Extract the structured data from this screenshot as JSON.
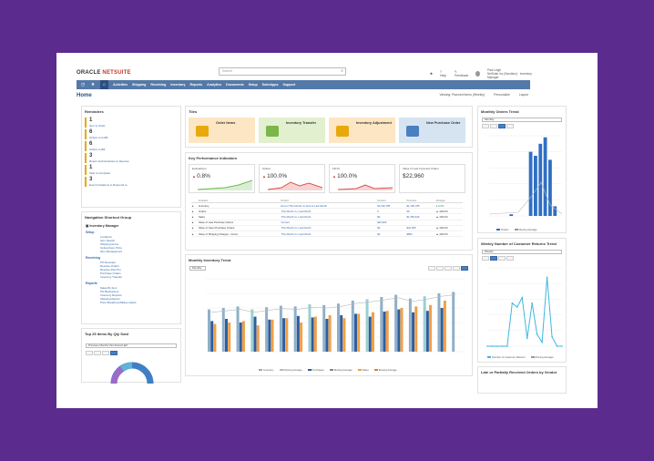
{
  "app": {
    "logo_a": "ORACLE",
    "logo_b": " NETSUITE",
    "search_placeholder": "Search"
  },
  "topbar": {
    "help": "Help",
    "feedback": "Feedback",
    "user_name": "Paul Leigh",
    "user_role": "NetSuite Inc (Sandbox) · Inventory Manager"
  },
  "nav": {
    "items": [
      "Activities",
      "Shipping",
      "Receiving",
      "Inventory",
      "Reports",
      "Analytics",
      "Documents",
      "Setup",
      "SuiteApps",
      "Support"
    ]
  },
  "page": {
    "title": "Home",
    "viewing": "Viewing: Planned Items (Weekly)",
    "personalize": "Personalize",
    "layout": "Layout"
  },
  "reminders": {
    "title": "Reminders",
    "items": [
      {
        "count": "1",
        "label": "Item to Order"
      },
      {
        "count": "6",
        "label": "Orders to Fulfill"
      },
      {
        "count": "6",
        "label": "Orders to Bill"
      },
      {
        "count": "3",
        "label": "Return Authorizations to Receive"
      },
      {
        "count": "1",
        "label": "Task to Complete"
      },
      {
        "count": "3",
        "label": "Event Invitations to Respond to"
      }
    ]
  },
  "nsg": {
    "title": "Navigation Shortcut Group",
    "group": "Inventory Manager",
    "sections": [
      {
        "name": "Setup",
        "links": [
          "Locations",
          "Item Search",
          "Shipping Items",
          "Upload Item Price",
          "Item Management"
        ]
      },
      {
        "name": "Receiving",
        "links": [
          "PO Receipts",
          "Receive Orders",
          "Receive RAs Pro",
          "Purchase Orders",
          "Inventory Transfer"
        ]
      },
      {
        "name": "Reports",
        "links": [
          "Sales By Item",
          "PO Backorders",
          "Inventory Reports",
          "Shipping Report",
          "Price Breaking Mailing Labels"
        ]
      }
    ]
  },
  "top25": {
    "title": "Top 25 Items By Qty Sold",
    "select": "Previous Months this Fiscal Half"
  },
  "tiles": {
    "title": "Tiles",
    "items": [
      {
        "label": "Order Items",
        "bg": "#fde6c4"
      },
      {
        "label": "Inventory Transfer",
        "bg": "#e3f0cf"
      },
      {
        "label": "Inventory Adjustment",
        "bg": "#fde6c4"
      },
      {
        "label": "New Purchase Order",
        "bg": "#d6e4f2"
      }
    ]
  },
  "kpi": {
    "title": "Key Performance Indicators",
    "cards": [
      {
        "label": "Evaluations",
        "value": "0.8%"
      },
      {
        "label": "Orders",
        "value": "100.0%"
      },
      {
        "label": "Fill Rt",
        "value": "100.0%"
      },
      {
        "label": "Value of Last Forecast Orders",
        "value": "$22,960"
      }
    ],
    "headers": [
      "Indicator",
      "Period",
      "Current",
      "Previous",
      "Change"
    ],
    "rows": [
      {
        "ind": "Inventory",
        "period": "End of This Month vs. End of Last Month",
        "cur": "$1,196,785",
        "prev": "$1,196,785",
        "chg": "0.0%"
      },
      {
        "ind": "Orders",
        "period": "This Month vs. Last Month",
        "cur": "6",
        "prev": "96",
        "chg": "100.0%"
      },
      {
        "ind": "Sales",
        "period": "This Month vs. Last Month",
        "cur": "$0",
        "prev": "$1,353,626",
        "chg": "100.0%"
      },
      {
        "ind": "Value of Late Purchase Orders",
        "period": "Current",
        "cur": "$22,960",
        "prev": "",
        "chg": ""
      },
      {
        "ind": "Value of Open Purchase Orders",
        "period": "This Month vs. Last Month",
        "cur": "$0",
        "prev": "$42,365",
        "chg": "100.0%"
      },
      {
        "ind": "Value of Shipping Charges - Gross",
        "period": "This Month vs. Last Month",
        "cur": "$0",
        "prev": "$852",
        "chg": "100.0%"
      }
    ]
  },
  "mit": {
    "title": "Monthly Inventory Trend",
    "select": "Monthly",
    "legend": [
      "Inventory",
      "Moving Average",
      "Purchases",
      "Moving Average",
      "Sales",
      "Moving Average"
    ],
    "colors": {
      "inventory": "#8fb0c9",
      "purchases": "#2f5d9e",
      "sales": "#f0a048",
      "teal": "#9ccfcf"
    }
  },
  "mot": {
    "title": "Monthly Orders Trend",
    "select": "Monthly",
    "legend": [
      "Orders",
      "Moving Average"
    ]
  },
  "wcr": {
    "title": "Weekly Number of Customer Returns Trend",
    "select": "Weekly",
    "legend": [
      "Number of Customer Returns",
      "Moving Average"
    ]
  },
  "lpr": {
    "title": "Late or Partially Received Orders by Vendor"
  },
  "chart_data": [
    {
      "type": "bar",
      "name": "Monthly Inventory Trend",
      "series": [
        {
          "name": "Inventory",
          "values": [
            58,
            60,
            62,
            58,
            61,
            63,
            62,
            65,
            64,
            66,
            70,
            72,
            75,
            78,
            73,
            76,
            80,
            82
          ]
        },
        {
          "name": "Purchases",
          "values": [
            42,
            45,
            40,
            48,
            44,
            46,
            49,
            47,
            45,
            50,
            52,
            48,
            55,
            58,
            54,
            56,
            60,
            0
          ]
        },
        {
          "name": "Sales",
          "values": [
            38,
            40,
            42,
            36,
            44,
            46,
            40,
            48,
            50,
            46,
            52,
            54,
            56,
            60,
            62,
            64,
            70,
            0
          ]
        }
      ],
      "ylim": [
        0,
        100
      ]
    },
    {
      "type": "bar",
      "name": "Monthly Orders Trend",
      "series": [
        {
          "name": "Orders",
          "values": [
            0,
            0,
            0,
            0,
            2,
            0,
            0,
            0,
            80,
            75,
            90,
            98,
            70,
            12,
            0
          ]
        }
      ],
      "ylim": [
        0,
        100
      ]
    },
    {
      "type": "line",
      "name": "Weekly Number of Customer Returns Trend",
      "series": [
        {
          "name": "Number of Customer Returns",
          "values": [
            0,
            0,
            0,
            0,
            0,
            55,
            50,
            62,
            10,
            55,
            15,
            5,
            88,
            12,
            0,
            0
          ]
        }
      ],
      "ylim": [
        0,
        100
      ]
    }
  ]
}
